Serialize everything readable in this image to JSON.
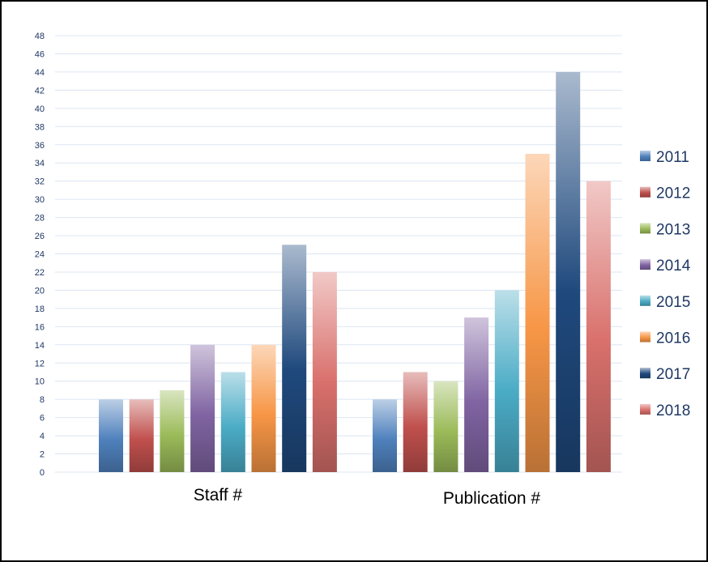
{
  "chart_data": {
    "type": "bar",
    "categories": [
      "Staff #",
      "Publication #"
    ],
    "series": [
      {
        "name": "2011",
        "values": [
          8,
          8
        ]
      },
      {
        "name": "2012",
        "values": [
          8,
          11
        ]
      },
      {
        "name": "2013",
        "values": [
          9,
          10
        ]
      },
      {
        "name": "2014",
        "values": [
          14,
          17
        ]
      },
      {
        "name": "2015",
        "values": [
          11,
          20
        ]
      },
      {
        "name": "2016",
        "values": [
          14,
          35
        ]
      },
      {
        "name": "2017",
        "values": [
          25,
          44
        ]
      },
      {
        "name": "2018",
        "values": [
          22,
          32
        ]
      }
    ],
    "colors": [
      "#4f81bd",
      "#c0504d",
      "#9bbb59",
      "#8064a2",
      "#4bacc6",
      "#f79646",
      "#1f497d",
      "#d9706c"
    ],
    "ylim": [
      0,
      48
    ],
    "ytick_step": 2,
    "grid": true,
    "legend_position": "right",
    "title": "",
    "xlabel": "",
    "ylabel": ""
  }
}
